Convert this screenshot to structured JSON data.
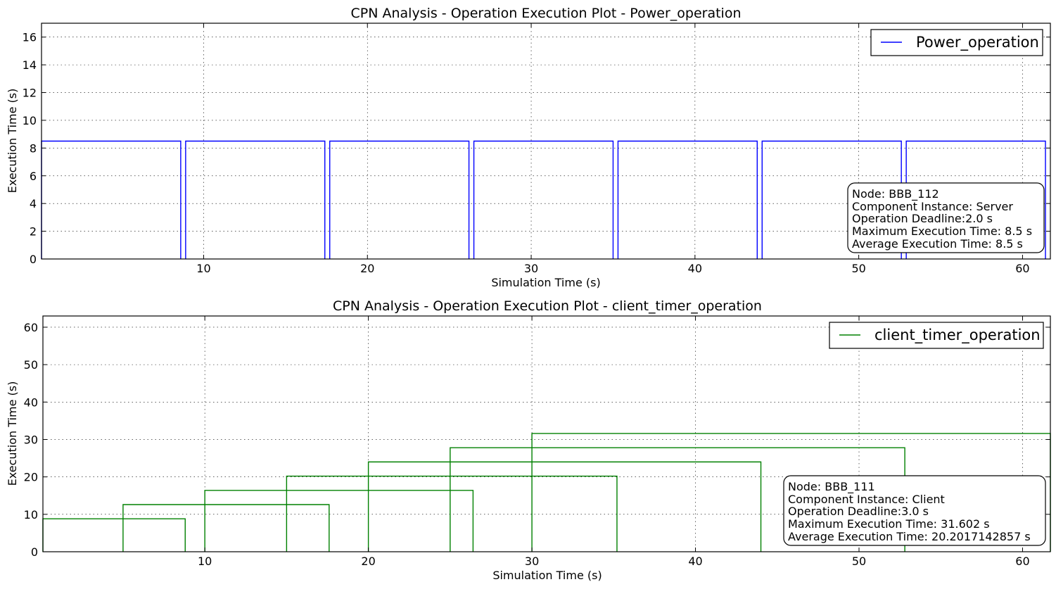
{
  "chart_data": [
    {
      "type": "line",
      "title": "CPN Analysis - Operation Execution Plot - Power_operation",
      "xlabel": "Simulation Time (s)",
      "ylabel": "Execution Time (s)",
      "xlim": [
        0.1,
        61.7
      ],
      "ylim": [
        0,
        17
      ],
      "xticks": [
        10,
        20,
        30,
        40,
        50,
        60
      ],
      "yticks": [
        0,
        2,
        4,
        6,
        8,
        10,
        12,
        14,
        16
      ],
      "grid": true,
      "legend_position": "top-right",
      "series": [
        {
          "name": "Power_operation",
          "color": "#0000ff",
          "shape": "steps",
          "segments": [
            {
              "start": 0.1,
              "end": 8.6,
              "value": 8.5
            },
            {
              "start": 8.9,
              "end": 17.4,
              "value": 8.5
            },
            {
              "start": 17.7,
              "end": 26.2,
              "value": 8.5
            },
            {
              "start": 26.5,
              "end": 35.0,
              "value": 8.5
            },
            {
              "start": 35.3,
              "end": 43.8,
              "value": 8.5
            },
            {
              "start": 44.1,
              "end": 52.6,
              "value": 8.5
            },
            {
              "start": 52.9,
              "end": 61.4,
              "value": 8.5
            }
          ]
        }
      ],
      "info_box": [
        "Node: BBB_112",
        "Component Instance: Server",
        "Operation Deadline:2.0 s",
        "Maximum Execution Time: 8.5 s",
        "Average Execution Time: 8.5 s"
      ]
    },
    {
      "type": "line",
      "title": "CPN Analysis - Operation Execution Plot - client_timer_operation",
      "xlabel": "Simulation Time (s)",
      "ylabel": "Execution Time (s)",
      "xlim": [
        0.1,
        61.7
      ],
      "ylim": [
        0,
        63
      ],
      "xticks": [
        10,
        20,
        30,
        40,
        50,
        60
      ],
      "yticks": [
        0,
        10,
        20,
        30,
        40,
        50,
        60
      ],
      "grid": true,
      "legend_position": "top-right",
      "series": [
        {
          "name": "client_timer_operation",
          "color": "#008000",
          "shape": "boxes",
          "segments": [
            {
              "start": 0.1,
              "end": 8.8,
              "value": 8.8
            },
            {
              "start": 5.0,
              "end": 17.6,
              "value": 12.6
            },
            {
              "start": 10.0,
              "end": 26.4,
              "value": 16.4
            },
            {
              "start": 15.0,
              "end": 35.2,
              "value": 20.2
            },
            {
              "start": 20.0,
              "end": 44.0,
              "value": 24.0
            },
            {
              "start": 25.0,
              "end": 52.8,
              "value": 27.8
            },
            {
              "start": 30.0,
              "end": 61.7,
              "value": 31.602
            }
          ]
        }
      ],
      "info_box": [
        "Node: BBB_111",
        "Component Instance: Client",
        "Operation Deadline:3.0 s",
        "Maximum Execution Time: 31.602 s",
        "Average Execution Time: 20.2017142857 s"
      ]
    }
  ]
}
